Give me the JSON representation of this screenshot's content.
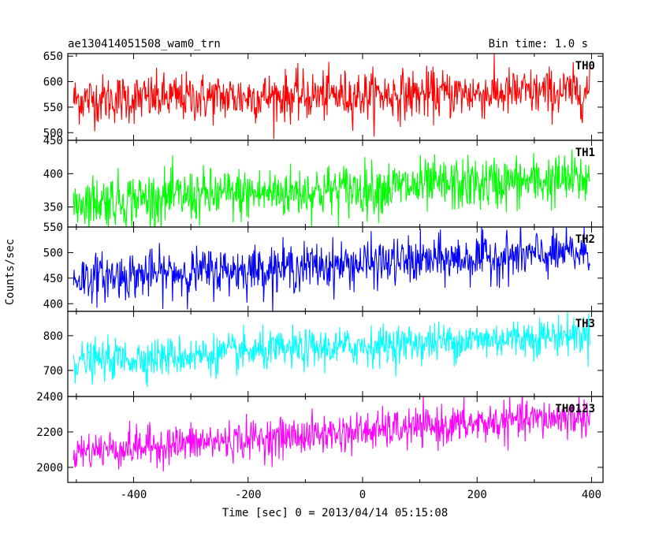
{
  "header": {
    "left_title": "ae130414051508_wam0_trn",
    "right_title": "Bin time: 1.0 s"
  },
  "axes": {
    "ylabel": "Counts/sec",
    "xlabel": "Time [sec] 0 = 2013/04/14 05:15:08",
    "x_ticks": [
      "-400",
      "-200",
      "0",
      "200",
      "400"
    ]
  },
  "chart_data": [
    {
      "type": "line",
      "name": "TH0",
      "color": "#ff0000",
      "xlim": [
        -515,
        420
      ],
      "ylim": [
        485,
        655
      ],
      "y_ticks": [
        500,
        550,
        600,
        650
      ],
      "x_range": [
        -505,
        397
      ],
      "mean_start": 565,
      "mean_end": 580,
      "noise": 24,
      "xlabel": "",
      "ylabel": "Counts/sec"
    },
    {
      "type": "line",
      "name": "TH1",
      "color": "#00ff00",
      "xlim": [
        -515,
        420
      ],
      "ylim": [
        320,
        450
      ],
      "y_ticks": [
        350,
        400,
        450
      ],
      "x_range": [
        -505,
        397
      ],
      "mean_start": 358,
      "mean_end": 392,
      "noise": 20,
      "xlabel": "",
      "ylabel": "Counts/sec"
    },
    {
      "type": "line",
      "name": "TH2",
      "color": "#0000ff",
      "xlim": [
        -515,
        420
      ],
      "ylim": [
        385,
        550
      ],
      "y_ticks": [
        400,
        450,
        500,
        550
      ],
      "x_range": [
        -505,
        397
      ],
      "mean_start": 450,
      "mean_end": 500,
      "noise": 23,
      "xlabel": "",
      "ylabel": "Counts/sec"
    },
    {
      "type": "line",
      "name": "TH3",
      "color": "#00ffff",
      "xlim": [
        -515,
        420
      ],
      "ylim": [
        625,
        870
      ],
      "y_ticks": [
        700,
        800
      ],
      "x_range": [
        -505,
        397
      ],
      "mean_start": 725,
      "mean_end": 805,
      "noise": 28,
      "xlabel": "",
      "ylabel": "Counts/sec"
    },
    {
      "type": "line",
      "name": "TH0123",
      "color": "#ff00ff",
      "xlim": [
        -515,
        420
      ],
      "ylim": [
        1915,
        2400
      ],
      "y_ticks": [
        2000,
        2200,
        2400
      ],
      "x_range": [
        -505,
        397
      ],
      "mean_start": 2090,
      "mean_end": 2290,
      "noise": 55,
      "xlabel": "Time [sec] 0 = 2013/04/14 05:15:08",
      "ylabel": "Counts/sec"
    }
  ]
}
